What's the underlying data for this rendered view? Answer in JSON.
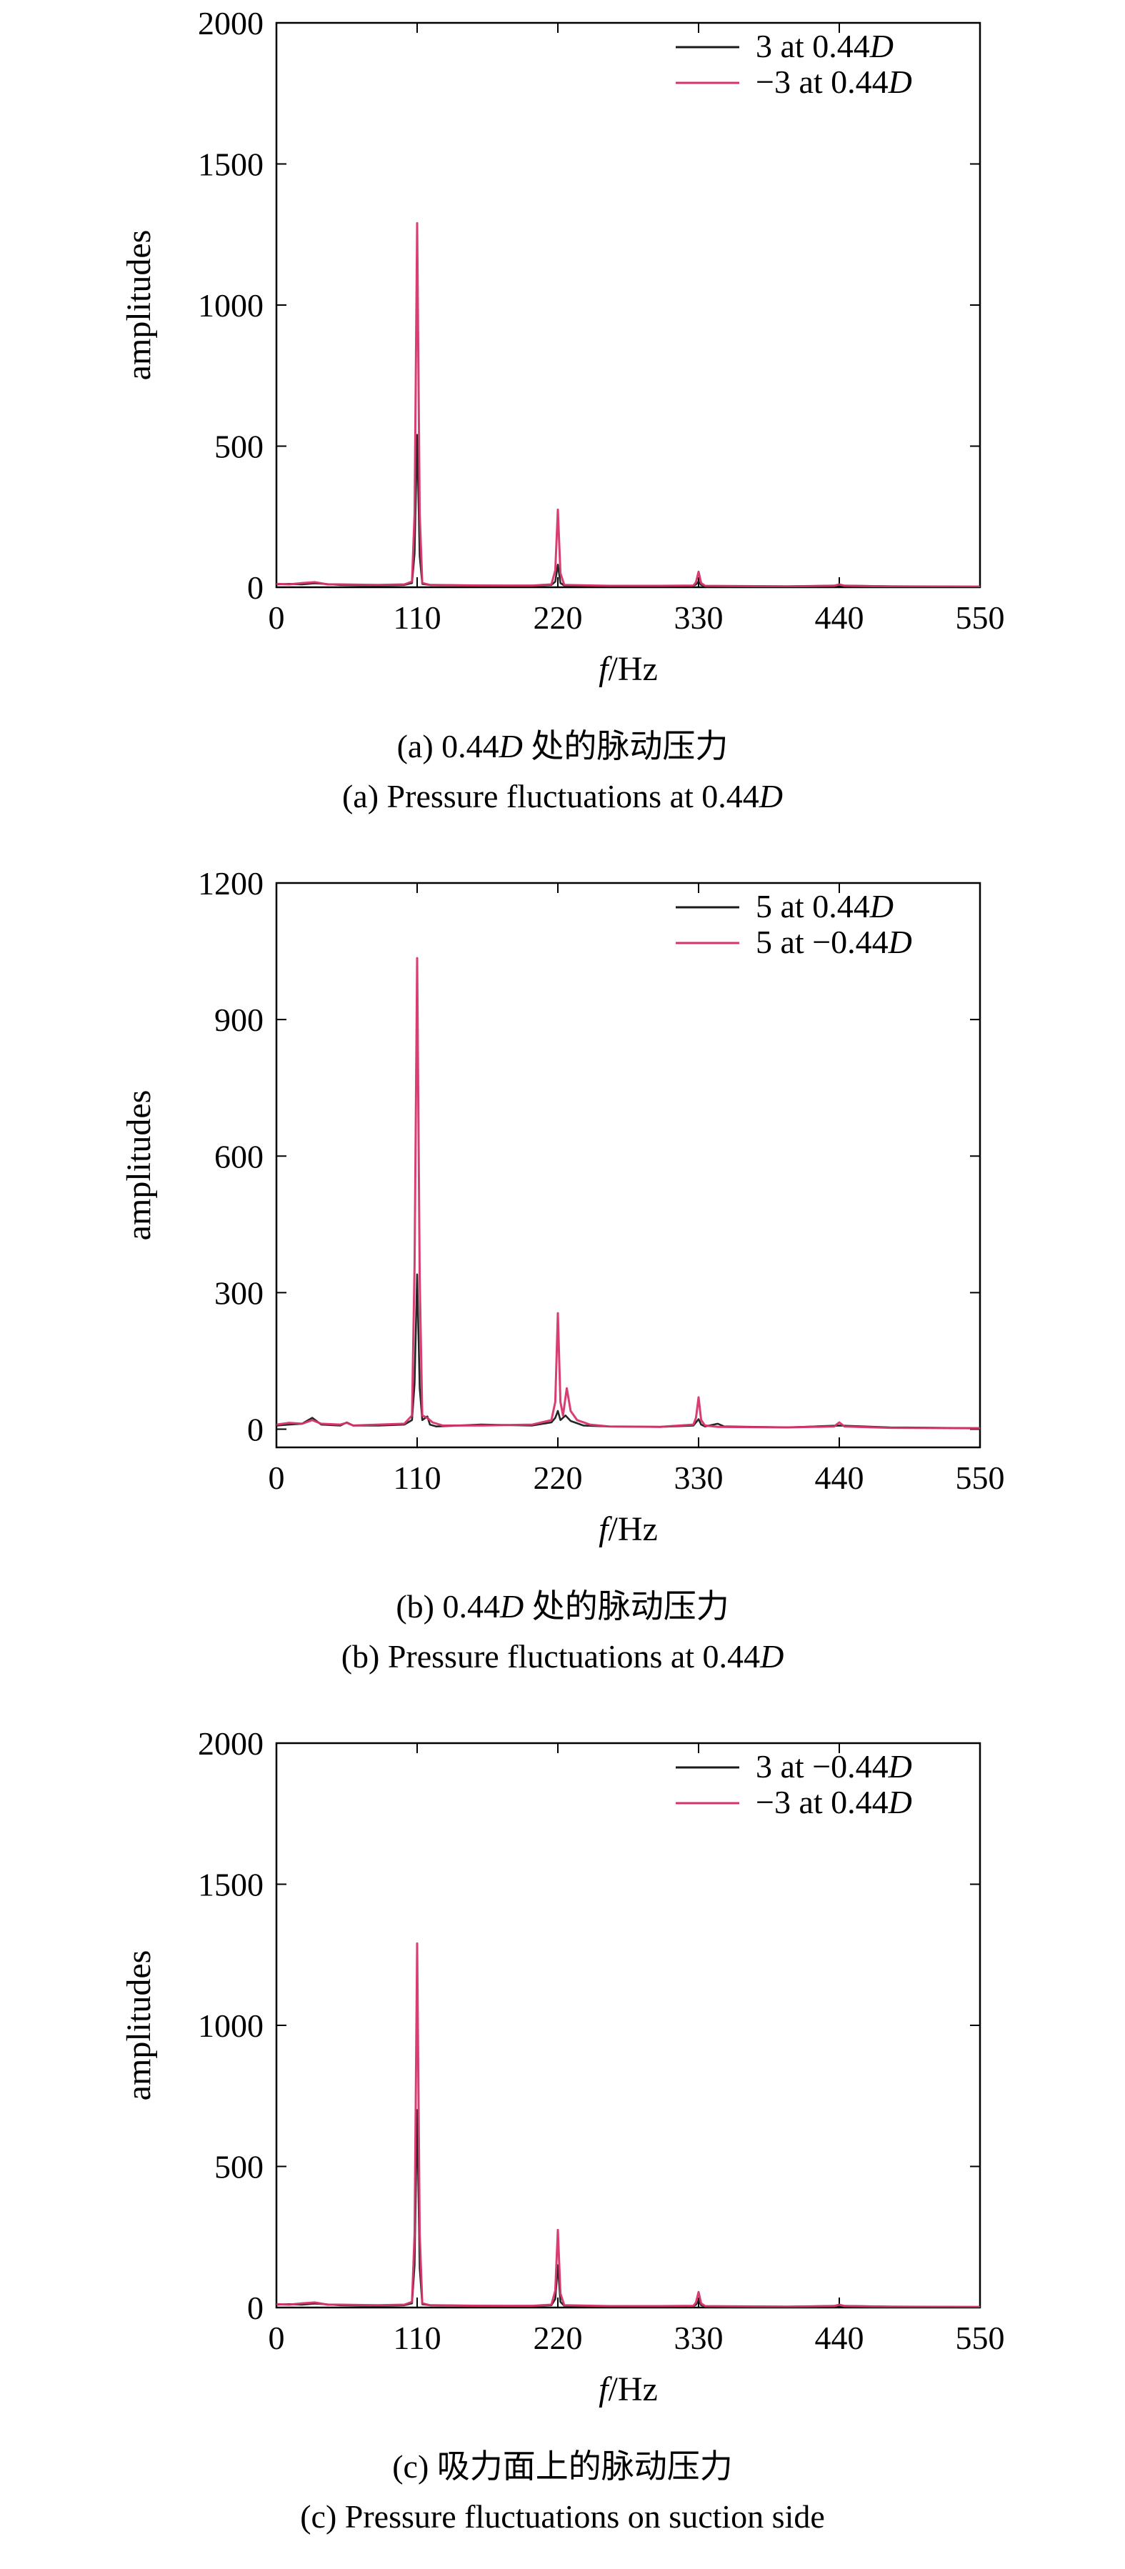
{
  "chart_data": [
    {
      "type": "line",
      "xlabel": "f/Hz",
      "ylabel": "amplitudes",
      "xlim": [
        0,
        550
      ],
      "ylim": [
        0,
        2000
      ],
      "xticks": [
        0,
        110,
        220,
        330,
        440,
        550
      ],
      "yticks": [
        0,
        500,
        1000,
        1500,
        2000
      ],
      "legend_position": "top-right",
      "series": [
        {
          "name": "3 at 0.44D",
          "color": "#1a1a1a",
          "x": [
            0,
            10,
            20,
            30,
            50,
            80,
            100,
            106,
            108,
            110,
            112,
            114,
            120,
            160,
            200,
            215,
            218,
            220,
            222,
            225,
            260,
            300,
            326,
            328,
            330,
            332,
            335,
            400,
            440,
            480,
            550
          ],
          "y": [
            10,
            12,
            10,
            14,
            8,
            6,
            8,
            15,
            120,
            540,
            110,
            12,
            8,
            6,
            5,
            8,
            20,
            80,
            15,
            6,
            5,
            4,
            5,
            10,
            20,
            8,
            4,
            3,
            6,
            3,
            2
          ]
        },
        {
          "name": "−3 at 0.44D",
          "color": "#d6336c",
          "x": [
            0,
            10,
            20,
            30,
            40,
            50,
            80,
            100,
            106,
            108,
            110,
            112,
            114,
            120,
            160,
            200,
            215,
            218,
            220,
            222,
            225,
            260,
            300,
            326,
            328,
            330,
            332,
            335,
            400,
            436,
            440,
            444,
            480,
            550
          ],
          "y": [
            12,
            10,
            15,
            18,
            10,
            10,
            8,
            10,
            20,
            260,
            1290,
            260,
            15,
            8,
            6,
            6,
            10,
            60,
            275,
            50,
            8,
            5,
            5,
            6,
            18,
            55,
            15,
            5,
            3,
            5,
            10,
            5,
            3,
            2
          ]
        }
      ]
    },
    {
      "type": "line",
      "xlabel": "f/Hz",
      "ylabel": "amplitudes",
      "xlim": [
        0,
        550
      ],
      "ylim": [
        -40,
        1200
      ],
      "xticks": [
        0,
        110,
        220,
        330,
        440,
        550
      ],
      "yticks": [
        0,
        300,
        600,
        900,
        1200
      ],
      "legend_position": "top-right",
      "series": [
        {
          "name": "5 at 0.44D",
          "color": "#1a1a1a",
          "x": [
            0,
            10,
            20,
            28,
            35,
            50,
            55,
            60,
            80,
            100,
            106,
            108,
            110,
            112,
            114,
            118,
            120,
            125,
            160,
            200,
            215,
            218,
            220,
            222,
            226,
            230,
            240,
            260,
            300,
            326,
            328,
            330,
            332,
            335,
            345,
            350,
            400,
            440,
            480,
            550
          ],
          "y": [
            8,
            10,
            12,
            25,
            10,
            8,
            15,
            8,
            8,
            10,
            20,
            100,
            340,
            90,
            20,
            28,
            10,
            6,
            10,
            8,
            15,
            25,
            40,
            20,
            30,
            18,
            8,
            6,
            5,
            8,
            15,
            22,
            10,
            6,
            12,
            6,
            4,
            8,
            4,
            2
          ]
        },
        {
          "name": "5 at −0.44D",
          "color": "#d6336c",
          "x": [
            0,
            10,
            20,
            28,
            35,
            50,
            55,
            60,
            80,
            100,
            106,
            108,
            110,
            112,
            114,
            118,
            122,
            130,
            160,
            200,
            215,
            218,
            220,
            222,
            224,
            227,
            230,
            235,
            245,
            260,
            300,
            326,
            328,
            330,
            332,
            335,
            345,
            400,
            436,
            440,
            444,
            480,
            550
          ],
          "y": [
            10,
            14,
            12,
            20,
            12,
            10,
            14,
            8,
            10,
            12,
            30,
            360,
            1035,
            330,
            30,
            25,
            15,
            8,
            8,
            10,
            20,
            60,
            255,
            60,
            30,
            90,
            40,
            20,
            10,
            6,
            5,
            10,
            25,
            70,
            20,
            8,
            5,
            4,
            6,
            15,
            6,
            3,
            2
          ]
        }
      ]
    },
    {
      "type": "line",
      "xlabel": "f/Hz",
      "ylabel": "amplitudes",
      "xlim": [
        0,
        550
      ],
      "ylim": [
        0,
        2000
      ],
      "xticks": [
        0,
        110,
        220,
        330,
        440,
        550
      ],
      "yticks": [
        0,
        500,
        1000,
        1500,
        2000
      ],
      "legend_position": "top-right",
      "series": [
        {
          "name": "3 at −0.44D",
          "color": "#1a1a1a",
          "x": [
            0,
            10,
            20,
            30,
            50,
            80,
            100,
            106,
            108,
            110,
            112,
            114,
            120,
            160,
            200,
            215,
            218,
            220,
            222,
            225,
            260,
            300,
            326,
            328,
            330,
            332,
            335,
            400,
            440,
            480,
            550
          ],
          "y": [
            10,
            12,
            10,
            14,
            8,
            6,
            8,
            15,
            150,
            700,
            140,
            12,
            8,
            6,
            5,
            8,
            30,
            150,
            20,
            6,
            5,
            4,
            5,
            10,
            25,
            8,
            4,
            3,
            6,
            3,
            2
          ]
        },
        {
          "name": "−3 at 0.44D",
          "color": "#d6336c",
          "x": [
            0,
            10,
            20,
            30,
            40,
            50,
            80,
            100,
            106,
            108,
            110,
            112,
            114,
            120,
            160,
            200,
            215,
            218,
            220,
            222,
            225,
            260,
            300,
            326,
            328,
            330,
            332,
            335,
            400,
            436,
            440,
            444,
            480,
            550
          ],
          "y": [
            12,
            10,
            15,
            18,
            10,
            10,
            8,
            10,
            20,
            260,
            1290,
            260,
            15,
            8,
            6,
            6,
            10,
            60,
            275,
            50,
            8,
            5,
            5,
            6,
            18,
            55,
            15,
            5,
            3,
            5,
            10,
            5,
            3,
            2
          ]
        }
      ]
    }
  ],
  "captions": [
    {
      "cn": "(a) 0.44D 处的脉动压力",
      "en": "(a) Pressure fluctuations at 0.44D"
    },
    {
      "cn": "(b) 0.44D 处的脉动压力",
      "en": "(b) Pressure fluctuations at 0.44D"
    },
    {
      "cn": "(c) 吸力面上的脉动压力",
      "en": "(c) Pressure fluctuations on suction side"
    }
  ]
}
